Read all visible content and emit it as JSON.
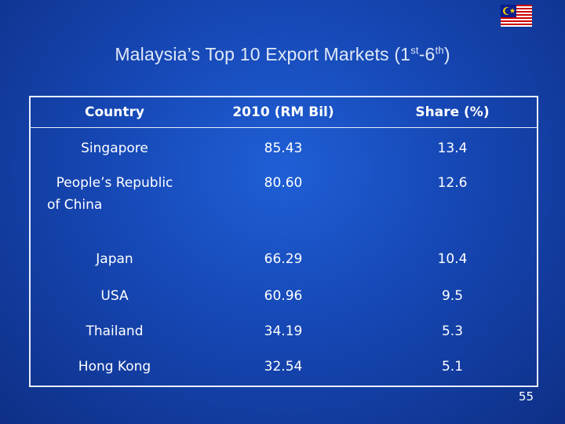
{
  "slide": {
    "title_main": "Malaysia’s Top 10 Export Markets (1",
    "title_sup1": "st",
    "title_mid": "-6",
    "title_sup2": "th",
    "title_end": ")",
    "page_number": "55",
    "flag_icon": "malaysia-flag-icon"
  },
  "table": {
    "headers": [
      "Country",
      "2010 (RM Bil)",
      "Share (%)"
    ],
    "rows": [
      {
        "country": "Singapore",
        "value": "85.43",
        "share": "13.4"
      },
      {
        "country_line1": "People’s Republic",
        "country_line2": "of China",
        "value": "80.60",
        "share": "12.6"
      },
      {
        "country": "Japan",
        "value": "66.29",
        "share": "10.4"
      },
      {
        "country": "USA",
        "value": "60.96",
        "share": "9.5"
      },
      {
        "country": "Thailand",
        "value": "34.19",
        "share": "5.3"
      },
      {
        "country": "Hong Kong",
        "value": "32.54",
        "share": "5.1"
      }
    ]
  }
}
